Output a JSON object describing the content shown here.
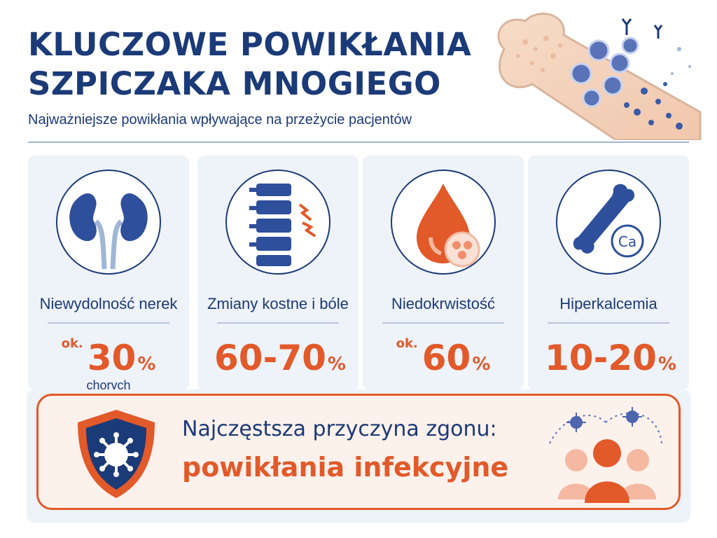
{
  "header": {
    "title": "KLUCZOWE POWIKŁANIA SZPICZAKA MNOGIEGO",
    "subtitle": "Najważniejsze powikłania wpływające na przeżycie pacjentów"
  },
  "cards": [
    {
      "label": "Niewydolność nerek",
      "prefix": "ok.",
      "value": "30",
      "unit": "%",
      "note": "chorych",
      "icon": "kidneys-icon"
    },
    {
      "label": "Zmiany kostne i bóle",
      "prefix": "",
      "value": "60-70",
      "unit": "%",
      "note": "",
      "icon": "spine-icon"
    },
    {
      "label": "Niedokrwistość",
      "prefix": "ok.",
      "value": "60",
      "unit": "%",
      "note": "",
      "icon": "blood-drop-icon"
    },
    {
      "label": "Hiperkalcemia",
      "prefix": "",
      "value": "10-20",
      "unit": "%",
      "note": "",
      "icon": "bone-calcium-icon",
      "icon_text": "Ca"
    }
  ],
  "banner": {
    "line1": "Najczęstsza przyczyna zgonu:",
    "line2": "powikłania infekcyjne"
  },
  "colors": {
    "navy": "#1b3a78",
    "orange": "#e2592a",
    "card_bg": "#eef2f9",
    "banner_bg": "#fdf1ec"
  }
}
